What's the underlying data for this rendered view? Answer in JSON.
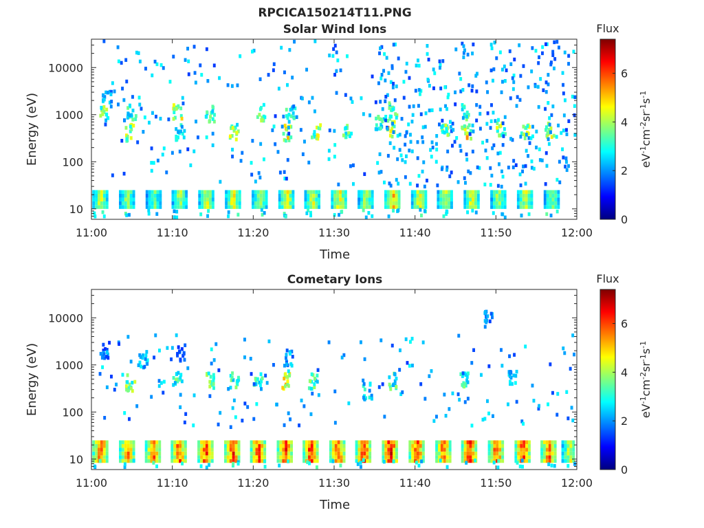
{
  "figure_title": "RPCICA150214T11.PNG",
  "colormap_stops": [
    "#00007f",
    "#0000ff",
    "#007fff",
    "#00ffff",
    "#7fff7f",
    "#ffff00",
    "#ff7f00",
    "#ff0000",
    "#7f0000"
  ],
  "chart_data": [
    {
      "type": "heatmap",
      "title": "Solar Wind Ions",
      "xlabel": "Time",
      "ylabel": "Energy (eV)",
      "x_range": [
        "11:00",
        "12:00"
      ],
      "x_ticks": [
        "11:00",
        "11:10",
        "11:20",
        "11:30",
        "11:40",
        "11:50",
        "12:00"
      ],
      "y_scale": "log",
      "ylim": [
        6,
        40000
      ],
      "y_ticks": [
        "10",
        "100",
        "1000",
        "10000"
      ],
      "colorbar": {
        "label_top": "Flux",
        "units": "eV⁻¹cm⁻²sr⁻¹s⁻¹",
        "range": [
          0,
          7.4
        ],
        "ticks": [
          "0",
          "2",
          "4",
          "6"
        ]
      },
      "low_energy_band": {
        "energy_range_eV": [
          12,
          30
        ],
        "burst_times_min": [
          1,
          4.3,
          7.6,
          10.8,
          14.1,
          17.4,
          20.7,
          24.0,
          27.2,
          30.5,
          33.8,
          37.1,
          40.4,
          43.6,
          46.9,
          50.2,
          53.5,
          56.8
        ],
        "peak_flux": [
          4.5,
          4.2,
          3.8,
          4.3,
          4.6,
          5.0,
          4.4,
          4.8,
          4.6,
          4.9,
          4.3,
          5.4,
          4.7,
          4.5,
          4.8,
          4.4,
          4.6,
          4.2
        ]
      },
      "mid_energy_clusters": [
        {
          "t": 1.5,
          "e": 1100,
          "flux": 4.0
        },
        {
          "t": 1.8,
          "e": 2300,
          "flux": 2.4
        },
        {
          "t": 4.6,
          "e": 450,
          "flux": 4.5
        },
        {
          "t": 4.8,
          "e": 1200,
          "flux": 3.5
        },
        {
          "t": 10.5,
          "e": 1200,
          "flux": 4.6
        },
        {
          "t": 10.8,
          "e": 450,
          "flux": 3.3
        },
        {
          "t": 14.5,
          "e": 1100,
          "flux": 3.8
        },
        {
          "t": 17.5,
          "e": 450,
          "flux": 4.5
        },
        {
          "t": 20.8,
          "e": 1200,
          "flux": 4.0
        },
        {
          "t": 24.0,
          "e": 450,
          "flux": 4.8
        },
        {
          "t": 24.5,
          "e": 1100,
          "flux": 3.6
        },
        {
          "t": 27.6,
          "e": 500,
          "flux": 4.4
        },
        {
          "t": 31.5,
          "e": 500,
          "flux": 3.8
        },
        {
          "t": 35.5,
          "e": 700,
          "flux": 3.4
        },
        {
          "t": 37.0,
          "e": 550,
          "flux": 5.2
        },
        {
          "t": 37.2,
          "e": 1300,
          "flux": 3.6
        },
        {
          "t": 43.5,
          "e": 500,
          "flux": 4.0
        },
        {
          "t": 46.2,
          "e": 500,
          "flux": 5.0
        },
        {
          "t": 46.0,
          "e": 1200,
          "flux": 3.8
        },
        {
          "t": 50.5,
          "e": 550,
          "flux": 4.3
        },
        {
          "t": 53.5,
          "e": 500,
          "flux": 4.4
        },
        {
          "t": 56.5,
          "e": 550,
          "flux": 4.6
        }
      ],
      "scatter_note": "sparse low-flux (~2) pixels from ~30 eV to 40 keV, denser after 11:35"
    },
    {
      "type": "heatmap",
      "title": "Cometary Ions",
      "xlabel": "Time",
      "ylabel": "Energy (eV)",
      "x_range": [
        "11:00",
        "12:00"
      ],
      "x_ticks": [
        "11:00",
        "11:10",
        "11:20",
        "11:30",
        "11:40",
        "11:50",
        "12:00"
      ],
      "y_scale": "log",
      "ylim": [
        6,
        40000
      ],
      "y_ticks": [
        "10",
        "100",
        "1000",
        "10000"
      ],
      "colorbar": {
        "label_top": "Flux",
        "units": "eV⁻¹cm⁻²sr⁻¹s⁻¹",
        "range": [
          0,
          7.4
        ],
        "ticks": [
          "0",
          "2",
          "4",
          "6"
        ]
      },
      "low_energy_band": {
        "energy_range_eV": [
          10,
          30
        ],
        "burst_times_min": [
          1,
          4.3,
          7.5,
          10.7,
          14.0,
          17.3,
          20.5,
          23.8,
          27.0,
          30.3,
          33.5,
          36.8,
          40.1,
          43.4,
          46.6,
          49.9,
          53.2,
          56.4,
          59.0
        ],
        "peak_flux": [
          6.3,
          5.8,
          6.1,
          6.2,
          6.4,
          6.6,
          6.3,
          6.5,
          6.7,
          6.4,
          6.6,
          6.9,
          6.5,
          6.2,
          6.6,
          6.3,
          6.4,
          6.1,
          4.6
        ]
      },
      "mid_energy_clusters": [
        {
          "t": 1.5,
          "e": 2200,
          "flux": 2.0
        },
        {
          "t": 4.7,
          "e": 450,
          "flux": 4.0
        },
        {
          "t": 6.3,
          "e": 1400,
          "flux": 2.6
        },
        {
          "t": 10.5,
          "e": 500,
          "flux": 3.6
        },
        {
          "t": 11.0,
          "e": 2000,
          "flux": 2.0
        },
        {
          "t": 14.5,
          "e": 500,
          "flux": 3.8
        },
        {
          "t": 17.5,
          "e": 500,
          "flux": 3.6
        },
        {
          "t": 20.5,
          "e": 500,
          "flux": 3.4
        },
        {
          "t": 23.8,
          "e": 500,
          "flux": 4.8
        },
        {
          "t": 24.2,
          "e": 1500,
          "flux": 2.4
        },
        {
          "t": 27.3,
          "e": 500,
          "flux": 3.8
        },
        {
          "t": 34.0,
          "e": 300,
          "flux": 3.0
        },
        {
          "t": 37.0,
          "e": 500,
          "flux": 3.6
        },
        {
          "t": 46.0,
          "e": 500,
          "flux": 3.8
        },
        {
          "t": 52.0,
          "e": 550,
          "flux": 3.0
        },
        {
          "t": 48.9,
          "e": 10000,
          "flux": 2.2
        }
      ],
      "scatter_note": "sparse low-flux pixels 50 eV to 5 keV"
    }
  ]
}
